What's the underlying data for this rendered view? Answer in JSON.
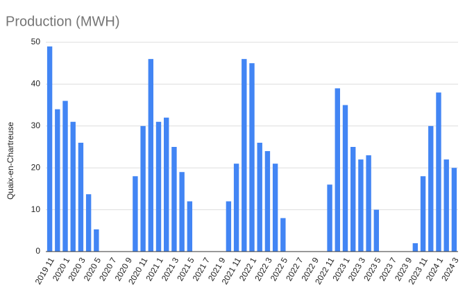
{
  "chart_data": {
    "type": "bar",
    "title": "Production (MWH)",
    "y_label": "Quaix-en-Chartreuse",
    "categories": [
      "2019 11",
      null,
      "2020 1",
      null,
      "2020 3",
      null,
      "2020 5",
      null,
      "2020 7",
      null,
      "2020 9",
      null,
      "2020 11",
      null,
      "2021 1",
      null,
      "2021 3",
      null,
      "2021 5",
      null,
      "2021 7",
      null,
      "2021 9",
      null,
      "2021 11",
      null,
      "2022 1",
      null,
      "2022 3",
      null,
      "2022 5",
      null,
      "2022 7",
      null,
      "2022 9",
      null,
      "2022 11",
      null,
      "2023 1",
      null,
      "2023 3",
      null,
      "2023 5",
      null,
      "2023 7",
      null,
      "2023 9",
      null,
      "2023 11",
      null,
      "2024 1",
      null,
      "2024 3"
    ],
    "values": [
      49,
      34,
      36,
      31,
      26,
      13.7,
      5.3,
      0,
      0,
      0,
      0,
      18,
      30,
      46,
      31,
      32,
      25,
      19,
      12,
      0,
      0,
      0,
      0,
      12,
      21,
      46,
      45,
      26,
      24,
      21,
      8,
      0,
      0,
      0,
      0,
      0,
      16,
      39,
      35,
      25,
      22,
      23,
      10,
      0,
      0,
      0,
      0,
      2,
      18,
      30,
      38,
      22,
      20
    ],
    "color": "#4285f4",
    "ylim": [
      0,
      50
    ],
    "yticks": [
      0,
      10,
      20,
      30,
      40,
      50
    ],
    "grid": true
  }
}
